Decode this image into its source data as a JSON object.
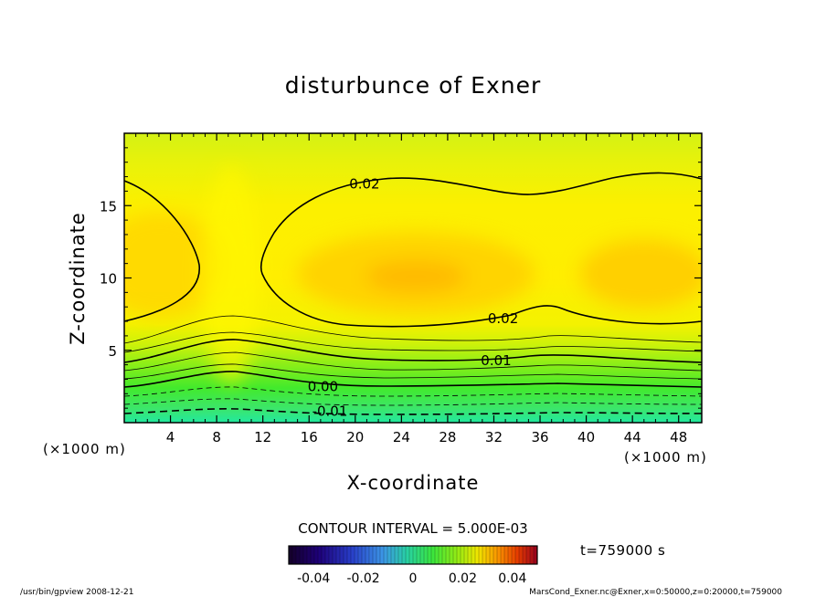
{
  "chart_data": {
    "type": "contour",
    "title": "disturbunce of Exner",
    "xlabel": "X-coordinate",
    "ylabel": "Z-coordinate",
    "x_unit": "(×1000 m)",
    "y_unit": "(×1000 m)",
    "xlim": [
      0,
      50
    ],
    "ylim": [
      0,
      20
    ],
    "x_ticks": [
      4,
      8,
      12,
      16,
      20,
      24,
      28,
      32,
      36,
      40,
      44,
      48
    ],
    "y_ticks": [
      5,
      10,
      15
    ],
    "contour_interval_label": "CONTOUR INTERVAL = 5.000E-03",
    "contour_labels": [
      {
        "text": "0.02",
        "x": 20.8,
        "z": 16.5
      },
      {
        "text": "0.02",
        "x": 32.8,
        "z": 7.2
      },
      {
        "text": "0.01",
        "x": 32.2,
        "z": 4.3
      },
      {
        "text": "0.00",
        "x": 17.2,
        "z": 2.5
      },
      {
        "text": "-0.01",
        "x": 17.8,
        "z": 0.8
      }
    ],
    "colorbar": {
      "range": [
        -0.05,
        0.05
      ],
      "tick_labels": [
        "-0.04",
        "-0.02",
        "0",
        "0.02",
        "0.04"
      ],
      "tick_values": [
        -0.04,
        -0.02,
        0,
        0.02,
        0.04
      ]
    }
  },
  "time_label": "t=759000 s",
  "footer_left": "/usr/bin/gpview   2008-12-21",
  "footer_right": "MarsCond_Exner.nc@Exner,x=0:50000,z=0:20000,t=759000"
}
